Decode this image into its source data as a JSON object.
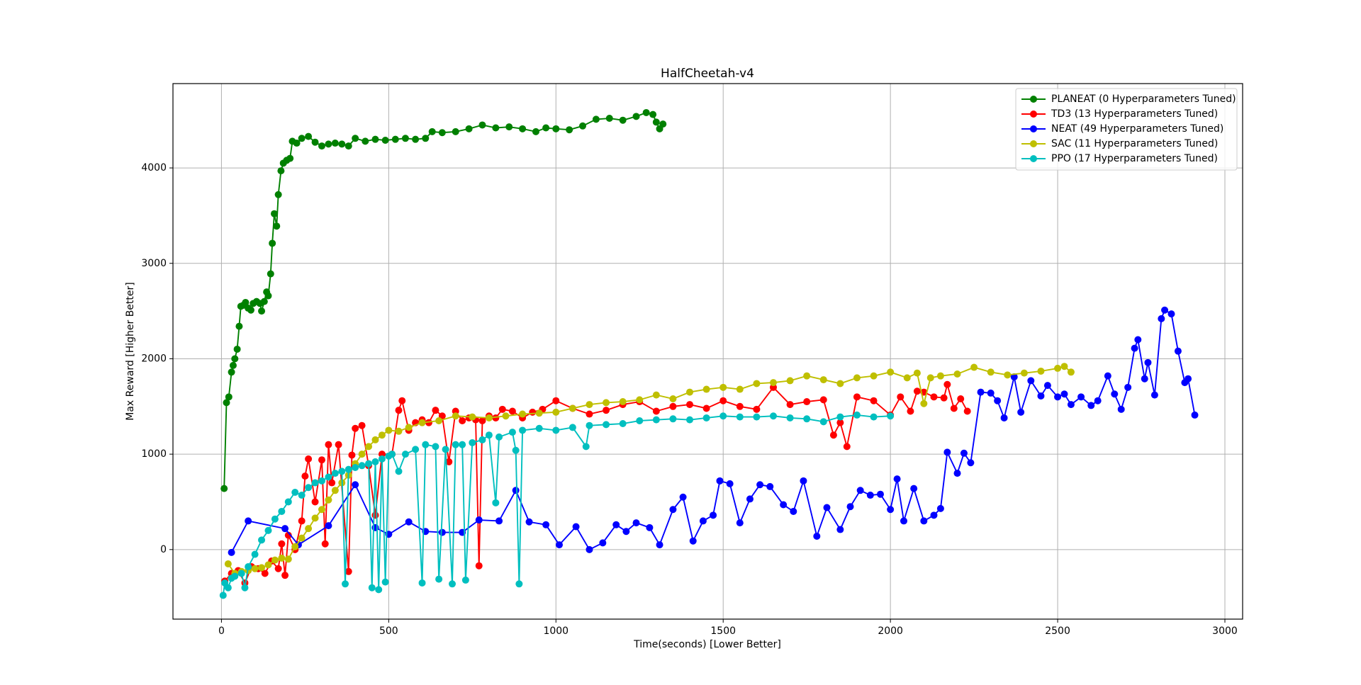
{
  "chart_data": {
    "type": "line",
    "title": "HalfCheetah-v4",
    "x_label": "Time(seconds) [Lower Better]",
    "y_label": "Max Reward [Higher Better]",
    "xlim": [
      -145,
      3053
    ],
    "ylim": [
      -729,
      4884
    ],
    "xticks": [
      0,
      500,
      1000,
      1500,
      2000,
      2500,
      3000
    ],
    "yticks": [
      0,
      1000,
      2000,
      3000,
      4000
    ],
    "grid": true,
    "legend": "upper right",
    "series": [
      {
        "name": "PLANEAT (0 Hyperparameters Tuned)",
        "color": "#008000",
        "x": [
          8,
          15,
          22,
          30,
          35,
          40,
          47,
          53,
          58,
          65,
          72,
          80,
          88,
          95,
          105,
          115,
          120,
          128,
          135,
          140,
          147,
          152,
          158,
          165,
          170,
          178,
          185,
          195,
          205,
          212,
          225,
          240,
          260,
          280,
          300,
          320,
          340,
          360,
          380,
          400,
          430,
          460,
          490,
          520,
          550,
          580,
          610,
          630,
          660,
          700,
          740,
          780,
          820,
          860,
          900,
          940,
          970,
          1000,
          1040,
          1080,
          1120,
          1160,
          1200,
          1240,
          1270,
          1290,
          1300,
          1310,
          1320
        ],
        "values": [
          640,
          1540,
          1600,
          1860,
          1930,
          2000,
          2100,
          2340,
          2550,
          2560,
          2590,
          2530,
          2510,
          2580,
          2600,
          2580,
          2500,
          2600,
          2700,
          2660,
          2890,
          3210,
          3520,
          3390,
          3720,
          3970,
          4050,
          4080,
          4100,
          4280,
          4260,
          4310,
          4330,
          4270,
          4230,
          4250,
          4260,
          4250,
          4230,
          4310,
          4280,
          4300,
          4290,
          4300,
          4310,
          4300,
          4310,
          4380,
          4370,
          4380,
          4410,
          4450,
          4420,
          4430,
          4410,
          4380,
          4420,
          4410,
          4400,
          4440,
          4510,
          4520,
          4500,
          4540,
          4580,
          4560,
          4480,
          4410,
          4460
        ]
      },
      {
        "name": "TD3 (13 Hyperparameters Tuned)",
        "color": "#ff0000",
        "x": [
          10,
          30,
          50,
          70,
          90,
          110,
          130,
          150,
          170,
          180,
          190,
          200,
          220,
          240,
          250,
          260,
          280,
          300,
          310,
          320,
          330,
          350,
          380,
          390,
          400,
          420,
          440,
          460,
          480,
          510,
          530,
          540,
          560,
          580,
          600,
          620,
          640,
          660,
          680,
          700,
          720,
          740,
          760,
          770,
          780,
          800,
          820,
          840,
          870,
          900,
          930,
          960,
          1000,
          1050,
          1100,
          1150,
          1200,
          1250,
          1300,
          1350,
          1400,
          1450,
          1500,
          1550,
          1600,
          1650,
          1700,
          1750,
          1800,
          1830,
          1850,
          1870,
          1900,
          1950,
          2000,
          2030,
          2060,
          2080,
          2100,
          2130,
          2160,
          2170,
          2190,
          2210,
          2230
        ],
        "values": [
          -330,
          -250,
          -220,
          -350,
          -180,
          -200,
          -250,
          -120,
          -200,
          60,
          -270,
          150,
          0,
          300,
          770,
          950,
          500,
          940,
          60,
          1100,
          700,
          1100,
          -230,
          990,
          1270,
          1300,
          880,
          360,
          1000,
          1000,
          1460,
          1560,
          1250,
          1330,
          1360,
          1330,
          1460,
          1400,
          920,
          1450,
          1350,
          1380,
          1360,
          -170,
          1350,
          1400,
          1380,
          1470,
          1450,
          1380,
          1440,
          1470,
          1560,
          1480,
          1420,
          1460,
          1520,
          1550,
          1450,
          1500,
          1520,
          1480,
          1560,
          1500,
          1470,
          1700,
          1520,
          1550,
          1570,
          1200,
          1330,
          1080,
          1600,
          1560,
          1410,
          1600,
          1450,
          1660,
          1650,
          1600,
          1590,
          1730,
          1480,
          1580,
          1450
        ]
      },
      {
        "name": "NEAT (49 Hyperparameters Tuned)",
        "color": "#0000ff",
        "x": [
          30,
          80,
          190,
          230,
          320,
          400,
          460,
          500,
          560,
          610,
          660,
          720,
          770,
          830,
          880,
          920,
          970,
          1010,
          1060,
          1100,
          1140,
          1180,
          1210,
          1240,
          1280,
          1310,
          1350,
          1380,
          1410,
          1440,
          1470,
          1490,
          1520,
          1550,
          1580,
          1610,
          1640,
          1680,
          1710,
          1740,
          1780,
          1810,
          1850,
          1880,
          1910,
          1940,
          1970,
          2000,
          2020,
          2040,
          2070,
          2100,
          2130,
          2150,
          2170,
          2200,
          2220,
          2240,
          2270,
          2300,
          2320,
          2340,
          2370,
          2390,
          2420,
          2450,
          2470,
          2500,
          2520,
          2540,
          2570,
          2600,
          2620,
          2650,
          2670,
          2690,
          2710,
          2730,
          2740,
          2760,
          2770,
          2790,
          2810,
          2820,
          2840,
          2860,
          2880,
          2890,
          2910
        ],
        "values": [
          -30,
          300,
          220,
          50,
          250,
          680,
          230,
          160,
          290,
          190,
          180,
          180,
          310,
          300,
          620,
          290,
          260,
          50,
          240,
          0,
          70,
          260,
          190,
          280,
          230,
          50,
          420,
          550,
          90,
          300,
          360,
          720,
          690,
          280,
          530,
          680,
          660,
          470,
          400,
          720,
          140,
          440,
          210,
          450,
          620,
          570,
          580,
          420,
          740,
          300,
          640,
          300,
          360,
          430,
          1020,
          800,
          1010,
          910,
          1650,
          1640,
          1560,
          1380,
          1810,
          1440,
          1770,
          1610,
          1720,
          1600,
          1630,
          1520,
          1600,
          1510,
          1560,
          1820,
          1630,
          1470,
          1700,
          2110,
          2200,
          1790,
          1960,
          1620,
          2420,
          2510,
          2470,
          2080,
          1750,
          1790,
          1410
        ]
      },
      {
        "name": "SAC (11 Hyperparameters Tuned)",
        "color": "#bfbf00",
        "x": [
          20,
          40,
          60,
          80,
          100,
          120,
          140,
          160,
          180,
          200,
          220,
          240,
          260,
          280,
          300,
          320,
          340,
          360,
          380,
          400,
          420,
          440,
          460,
          480,
          500,
          530,
          560,
          600,
          650,
          700,
          750,
          800,
          850,
          900,
          950,
          1000,
          1050,
          1100,
          1150,
          1200,
          1250,
          1300,
          1350,
          1400,
          1450,
          1500,
          1550,
          1600,
          1650,
          1700,
          1750,
          1800,
          1850,
          1900,
          1950,
          2000,
          2050,
          2080,
          2100,
          2120,
          2150,
          2200,
          2250,
          2300,
          2350,
          2400,
          2450,
          2500,
          2520,
          2540
        ],
        "values": [
          -150,
          -250,
          -230,
          -220,
          -200,
          -190,
          -160,
          -110,
          -90,
          -100,
          30,
          120,
          220,
          330,
          420,
          520,
          620,
          700,
          780,
          900,
          1000,
          1080,
          1150,
          1200,
          1250,
          1240,
          1280,
          1330,
          1350,
          1400,
          1390,
          1380,
          1400,
          1420,
          1430,
          1440,
          1480,
          1520,
          1540,
          1550,
          1570,
          1620,
          1580,
          1650,
          1680,
          1700,
          1680,
          1740,
          1750,
          1770,
          1820,
          1780,
          1740,
          1800,
          1820,
          1860,
          1800,
          1850,
          1530,
          1800,
          1820,
          1840,
          1910,
          1860,
          1830,
          1850,
          1870,
          1900,
          1920,
          1860
        ]
      },
      {
        "name": "PPO (17 Hyperparameters Tuned)",
        "color": "#00bfbf",
        "x": [
          5,
          10,
          20,
          30,
          40,
          60,
          70,
          80,
          100,
          120,
          140,
          160,
          180,
          200,
          220,
          240,
          260,
          280,
          300,
          320,
          340,
          360,
          370,
          380,
          400,
          420,
          440,
          450,
          460,
          470,
          480,
          490,
          500,
          510,
          530,
          550,
          580,
          600,
          610,
          640,
          650,
          670,
          690,
          700,
          720,
          730,
          750,
          780,
          800,
          820,
          830,
          870,
          880,
          890,
          900,
          950,
          1000,
          1050,
          1090,
          1100,
          1150,
          1200,
          1250,
          1300,
          1350,
          1400,
          1450,
          1500,
          1550,
          1600,
          1650,
          1700,
          1750,
          1800,
          1850,
          1900,
          1950,
          2000
        ],
        "values": [
          -480,
          -350,
          -400,
          -300,
          -280,
          -250,
          -400,
          -180,
          -50,
          100,
          200,
          320,
          400,
          500,
          600,
          570,
          650,
          700,
          720,
          760,
          800,
          820,
          -360,
          840,
          860,
          880,
          900,
          -400,
          920,
          -420,
          950,
          -340,
          980,
          1000,
          820,
          1000,
          1050,
          -350,
          1100,
          1080,
          -310,
          1050,
          -360,
          1100,
          1100,
          -320,
          1120,
          1150,
          1200,
          490,
          1180,
          1230,
          1040,
          -360,
          1250,
          1270,
          1250,
          1280,
          1080,
          1300,
          1310,
          1320,
          1350,
          1360,
          1370,
          1360,
          1380,
          1400,
          1390,
          1390,
          1400,
          1380,
          1370,
          1340,
          1390,
          1410,
          1390,
          1400
        ]
      }
    ]
  }
}
